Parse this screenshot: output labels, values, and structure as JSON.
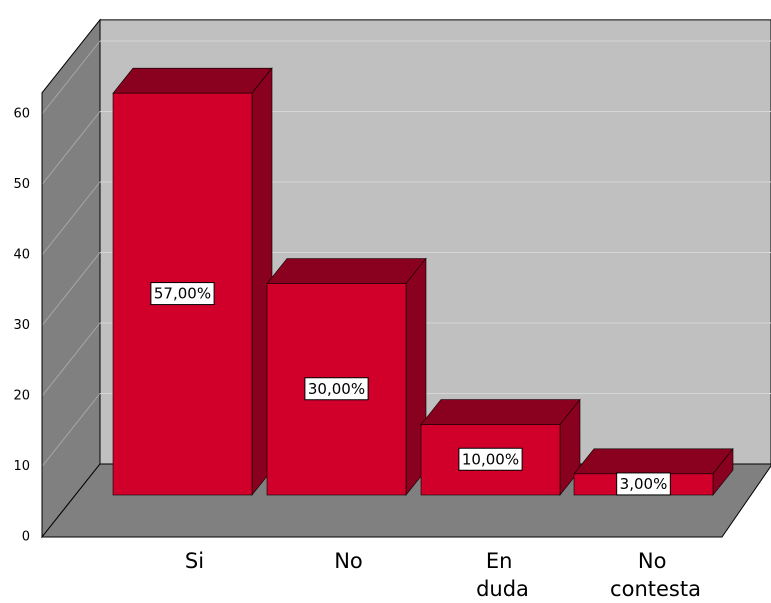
{
  "chart_data": {
    "type": "bar",
    "categories": [
      "Si",
      "No",
      "En duda",
      "No contesta"
    ],
    "values": [
      57,
      30,
      10,
      3
    ],
    "value_labels": [
      "57,00%",
      "30,00%",
      "10,00%",
      "3,00%"
    ],
    "color": "#d0002a",
    "ylim": [
      0,
      63
    ],
    "yticks": [
      0,
      10,
      20,
      30,
      40,
      50,
      60
    ],
    "grid": true
  }
}
